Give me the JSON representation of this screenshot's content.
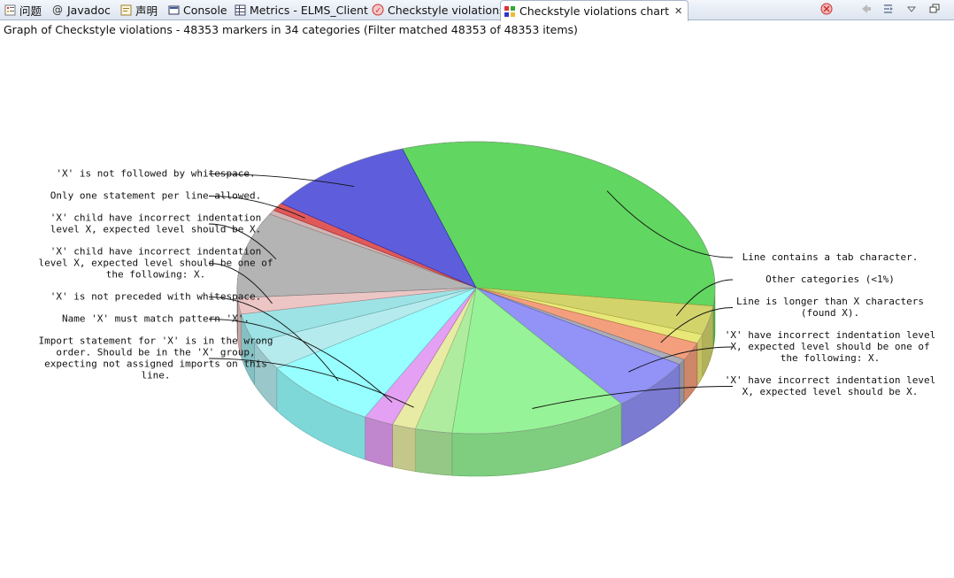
{
  "tabs": [
    {
      "label": "问题",
      "icon": "problems-icon",
      "active": false
    },
    {
      "label": "Javadoc",
      "icon": "at-icon",
      "active": false
    },
    {
      "label": "声明",
      "icon": "declaration-icon",
      "active": false
    },
    {
      "label": "Console",
      "icon": "console-icon",
      "active": false
    },
    {
      "label": "Metrics - ELMS_Client",
      "icon": "metrics-icon",
      "active": false
    },
    {
      "label": "Checkstyle violations",
      "icon": "checkstyle-icon",
      "active": false
    },
    {
      "label": "Checkstyle violations chart",
      "icon": "chart-icon",
      "active": true
    }
  ],
  "toolbar": {
    "icons": [
      "clear-violations-icon",
      "back-icon",
      "collapse-icon",
      "view-menu-icon",
      "minimize-icon"
    ]
  },
  "summary": "Graph of Checkstyle violations - 48353 markers in 34 categories (Filter matched 48353 of 48353 items)",
  "chart_data": {
    "type": "pie",
    "title": "",
    "slices": [
      {
        "label": "Line contains a tab character.",
        "value": 32.0,
        "color": "#3ecd3e"
      },
      {
        "label": "Other categories (<1%)",
        "value": 3.2,
        "color": "#c9c94c"
      },
      {
        "label": "",
        "value": 1.0,
        "color": "#e3e35a"
      },
      {
        "label": "Line is longer than X characters (found X).",
        "value": 2.0,
        "color": "#f08a60"
      },
      {
        "label": "",
        "value": 0.6,
        "color": "#9a9aa8"
      },
      {
        "label": "'X' have incorrect indentation level X, expected level should be one of the following: X.",
        "value": 5.8,
        "color": "#7a7af5"
      },
      {
        "label": "'X' have incorrect indentation level X, expected level should be X.",
        "value": 12.0,
        "color": "#80f080"
      },
      {
        "label": "",
        "value": 2.5,
        "color": "#9ee88a"
      },
      {
        "label": "Import statement for 'X' is in the wrong order. Should be in the 'X' group, expecting not assigned imports on this line.",
        "value": 1.6,
        "color": "#e3e78f"
      },
      {
        "label": "Name 'X' must match pattern 'X'.",
        "value": 2.0,
        "color": "#de8bf0"
      },
      {
        "label": "'X' is not preceded with whitespace.",
        "value": 8.0,
        "color": "#80ffff"
      },
      {
        "label": "",
        "value": 3.2,
        "color": "#a6e6ea"
      },
      {
        "label": "",
        "value": 3.2,
        "color": "#88dde0"
      },
      {
        "label": "'X' child have incorrect indentation level X, expected level should be one of the following: X.",
        "value": 1.8,
        "color": "#e8b8b8"
      },
      {
        "label": "'X' child have incorrect indentation level X, expected level should be X.",
        "value": 9.5,
        "color": "#a4a4a4"
      },
      {
        "label": "",
        "value": 0.5,
        "color": "#c8a4a4"
      },
      {
        "label": "Only one statement per line allowed.",
        "value": 0.9,
        "color": "#d93535"
      },
      {
        "label": "'X' is not followed by whitespace.",
        "value": 10.2,
        "color": "#3b3bd6"
      }
    ],
    "legend": "none"
  }
}
